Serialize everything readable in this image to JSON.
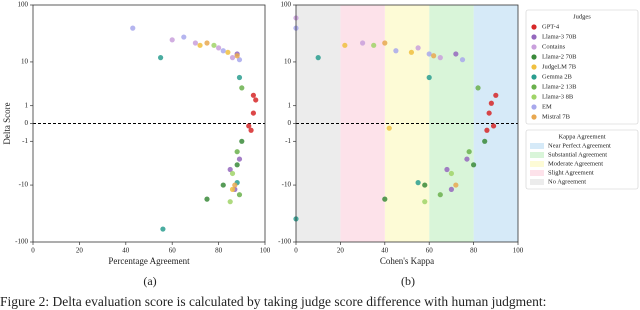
{
  "chart_data": [
    {
      "type": "scatter",
      "xlabel": "Percentage Agreement",
      "ylabel": "Delta Score",
      "xlim": [
        0,
        100
      ],
      "xticks": [
        0,
        20,
        40,
        60,
        80,
        100
      ],
      "ylim": [
        -100,
        100
      ],
      "yticks": [
        -100,
        -10,
        -1,
        0,
        1,
        10,
        100
      ],
      "yscale": "symlog",
      "hline": 0,
      "legend_title": "Judges",
      "series": [
        {
          "name": "GPT-4",
          "color": "#d62728",
          "x": [
            95,
            96,
            95,
            94,
            93
          ],
          "values": [
            2,
            1.5,
            0.5,
            -0.3,
            -0.1
          ]
        },
        {
          "name": "Llama-3 70B",
          "color": "#9467bd",
          "x": [
            88,
            89,
            87,
            85
          ],
          "values": [
            14,
            -3,
            -12,
            -5
          ]
        },
        {
          "name": "Contains",
          "color": "#c9a0dc",
          "x": [
            60,
            70,
            80,
            86
          ],
          "values": [
            25,
            22,
            18,
            12
          ]
        },
        {
          "name": "Llama-2 70B",
          "color": "#3a8a3a",
          "x": [
            75,
            82,
            88,
            90
          ],
          "values": [
            -18,
            -10,
            -4,
            -1
          ]
        },
        {
          "name": "JudgeLM 7B",
          "color": "#f0c040",
          "x": [
            72,
            84,
            86
          ],
          "values": [
            20,
            15,
            -12
          ]
        },
        {
          "name": "Gemma 2B",
          "color": "#2a9d8f",
          "x": [
            55,
            89,
            88,
            56
          ],
          "values": [
            12,
            5,
            -9,
            -60
          ]
        },
        {
          "name": "Llama-2 13B",
          "color": "#6ab04c",
          "x": [
            90,
            89,
            88
          ],
          "values": [
            3,
            -15,
            -2
          ]
        },
        {
          "name": "Llama-3 8B",
          "color": "#a0d468",
          "x": [
            78,
            85,
            86
          ],
          "values": [
            20,
            -20,
            -6
          ]
        },
        {
          "name": "EM",
          "color": "#a8a8ec",
          "x": [
            43,
            65,
            82,
            89
          ],
          "values": [
            40,
            28,
            16,
            11
          ]
        },
        {
          "name": "Mistral 7B",
          "color": "#e8a850",
          "x": [
            75,
            88,
            87
          ],
          "values": [
            22,
            13,
            -10
          ]
        }
      ]
    },
    {
      "type": "scatter",
      "xlabel": "Cohen's Kappa",
      "xlim": [
        0,
        100
      ],
      "xticks": [
        0,
        20,
        40,
        60,
        80,
        100
      ],
      "ylim": [
        -100,
        100
      ],
      "yticks": [
        -100,
        -10,
        -1,
        0,
        1,
        10,
        100
      ],
      "yscale": "symlog",
      "hline": 0,
      "bands_legend_title": "Kappa Agreement",
      "bands": [
        {
          "name": "Near Perfect Agreement",
          "range": [
            80,
            100
          ],
          "color": "#d6eaf8"
        },
        {
          "name": "Substantial Agreement",
          "range": [
            60,
            80
          ],
          "color": "#d9f5d9"
        },
        {
          "name": "Moderate Agreement",
          "range": [
            40,
            60
          ],
          "color": "#fdfbd6"
        },
        {
          "name": "Slight Agreement",
          "range": [
            20,
            40
          ],
          "color": "#fde2ea"
        },
        {
          "name": "No Agreement",
          "range": [
            0,
            20
          ],
          "color": "#ececec"
        }
      ],
      "series": [
        {
          "color": "#d62728",
          "x": [
            90,
            88,
            87,
            86,
            89
          ],
          "values": [
            2,
            1.2,
            0.5,
            -0.3,
            -0.1
          ]
        },
        {
          "color": "#9467bd",
          "x": [
            72,
            77,
            70,
            68
          ],
          "values": [
            14,
            -3,
            -12,
            -5
          ]
        },
        {
          "color": "#c9a0dc",
          "x": [
            0,
            30,
            55,
            65
          ],
          "values": [
            60,
            22,
            18,
            12
          ]
        },
        {
          "color": "#3a8a3a",
          "x": [
            40,
            58,
            80,
            85
          ],
          "values": [
            -18,
            -10,
            -4,
            -1
          ]
        },
        {
          "color": "#f0c040",
          "x": [
            22,
            52,
            42
          ],
          "values": [
            20,
            15,
            -0.2
          ]
        },
        {
          "color": "#2a9d8f",
          "x": [
            10,
            60,
            55,
            0
          ],
          "values": [
            12,
            5,
            -9,
            -40
          ]
        },
        {
          "color": "#6ab04c",
          "x": [
            82,
            65,
            78
          ],
          "values": [
            3,
            -15,
            -2
          ]
        },
        {
          "color": "#a0d468",
          "x": [
            35,
            58,
            70
          ],
          "values": [
            20,
            -20,
            -6
          ]
        },
        {
          "color": "#a8a8ec",
          "x": [
            0,
            45,
            60,
            75
          ],
          "values": [
            40,
            16,
            14,
            11
          ]
        },
        {
          "color": "#e8a850",
          "x": [
            40,
            62,
            72
          ],
          "values": [
            22,
            13,
            -10
          ]
        }
      ]
    }
  ],
  "subfigure_labels": [
    "(a)",
    "(b)"
  ],
  "caption": "Figure 2: Delta evaluation score is calculated by taking judge score difference with human judgment:"
}
